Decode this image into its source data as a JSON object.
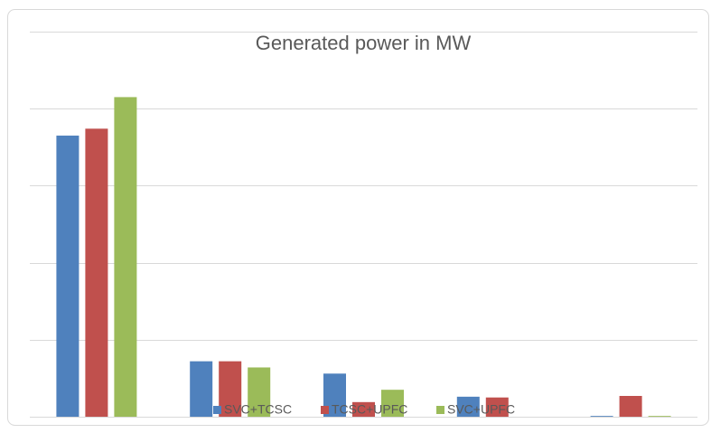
{
  "chart_data": {
    "type": "bar",
    "title": "Generated power  in MW",
    "categories": [
      null,
      null,
      null,
      null,
      null
    ],
    "series": [
      {
        "name": "SVC+TCSC",
        "color": "#4f81bd",
        "values": [
          3.65,
          0.72,
          0.56,
          0.26,
          0.01
        ]
      },
      {
        "name": "TCSC+UPFC",
        "color": "#c0504d",
        "values": [
          3.74,
          0.72,
          0.19,
          0.25,
          0.27
        ]
      },
      {
        "name": "SVC+UPFC",
        "color": "#9bbb59",
        "values": [
          4.15,
          0.64,
          0.35,
          0,
          0.01
        ]
      }
    ],
    "ylim": [
      0,
      5
    ],
    "yticks": [
      0,
      1,
      2,
      3,
      4,
      5
    ],
    "grid": true,
    "legend": "bottom"
  }
}
